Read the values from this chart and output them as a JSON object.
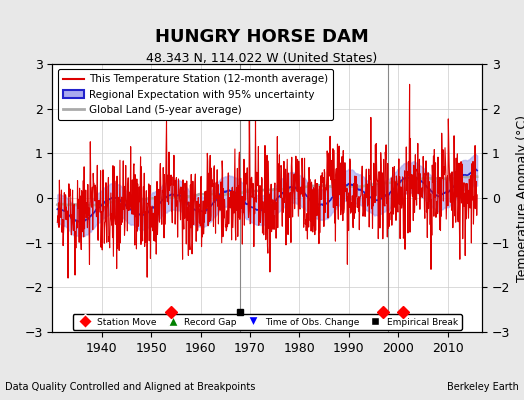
{
  "title": "HUNGRY HORSE DAM",
  "subtitle": "48.343 N, 114.022 W (United States)",
  "ylabel": "Temperature Anomaly (°C)",
  "xlabel_left": "Data Quality Controlled and Aligned at Breakpoints",
  "xlabel_right": "Berkeley Earth",
  "xlim": [
    1930,
    2017
  ],
  "ylim": [
    -3,
    3
  ],
  "yticks": [
    -3,
    -2,
    -1,
    0,
    1,
    2,
    3
  ],
  "xticks": [
    1940,
    1950,
    1960,
    1970,
    1980,
    1990,
    2000,
    2010
  ],
  "background_color": "#e8e8e8",
  "plot_background_color": "#ffffff",
  "grid_color": "#cccccc",
  "vertical_lines": [
    1968,
    1998
  ],
  "station_move_years": [
    1954,
    1997,
    2001
  ],
  "empirical_break_years": [
    1968
  ],
  "red_line_color": "#dd0000",
  "blue_line_color": "#2222cc",
  "blue_fill_color": "#aaaaee",
  "gray_line_color": "#aaaaaa",
  "seed": 42
}
